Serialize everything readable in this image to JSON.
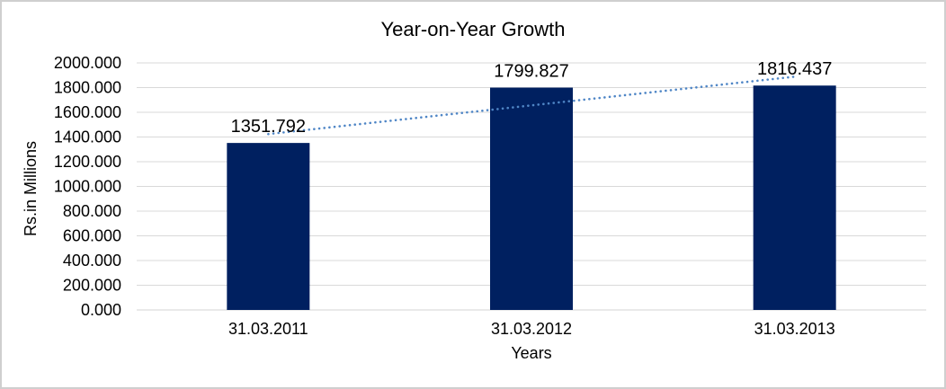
{
  "chart_data": {
    "type": "bar",
    "title": "Year-on-Year Growth",
    "categories": [
      "31.03.2011",
      "31.03.2012",
      "31.03.2013"
    ],
    "values": [
      1351.792,
      1799.827,
      1816.437
    ],
    "value_labels": [
      "1351.792",
      "1799.827",
      "1816.437"
    ],
    "xlabel": "Years",
    "ylabel": "Rs.in Millions",
    "ylim": [
      0,
      2000
    ],
    "ytick_step": 200,
    "ytick_labels": [
      "0.000",
      "200.000",
      "400.000",
      "600.000",
      "800.000",
      "1000.000",
      "1200.000",
      "1400.000",
      "1600.000",
      "1800.000",
      "2000.000"
    ],
    "grid": "horizontal",
    "legend": "none",
    "trendline": {
      "type": "linear",
      "style": "dotted"
    },
    "colors": {
      "bar": "#002060",
      "trendline": "#4f86c6",
      "gridline": "#d9d9d9",
      "axis_line": "#d3d3d3",
      "text": "#000000",
      "background": "#ffffff",
      "frame_border": "#cfcfcf"
    }
  }
}
